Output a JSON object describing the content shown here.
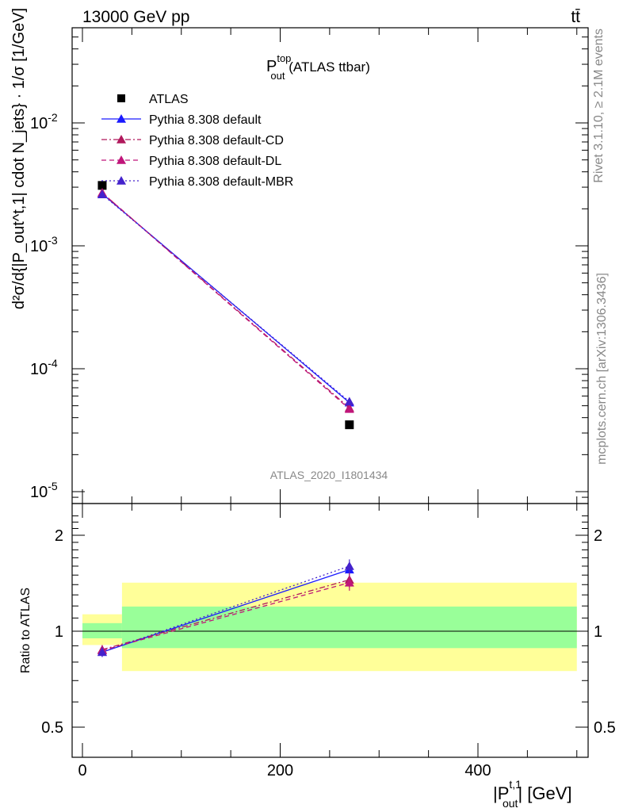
{
  "header": {
    "energy_label": "13000 GeV pp",
    "process_label": "tt̄"
  },
  "side_labels": {
    "rivet": "Rivet 3.1.10, ≥ 2.1M events",
    "mcplots": "mcplots.cern.ch [arXiv:1306.3436]"
  },
  "analysis_label": "ATLAS_2020_I1801434",
  "chart_data": [
    {
      "type": "line",
      "panel": "main",
      "title": {
        "main": "P",
        "sup": "top",
        "sub": "out",
        "suffix": " (ATLAS ttbar)"
      },
      "ylabel": "d²σ/d{|P_out^t,1| cdot N_jets} · 1/σ [1/GeV]",
      "yscale": "log",
      "ylim": [
        8e-06,
        0.0075
      ],
      "ytick_labels": [
        "10^-5",
        "10^-4",
        "10^-3",
        "10^-2"
      ],
      "xlim": [
        -10,
        510
      ],
      "legend_position": "top-left",
      "x": [
        20,
        270
      ],
      "x_bins": [
        [
          0,
          40
        ],
        [
          40,
          500
        ]
      ],
      "series": [
        {
          "name": "ATLAS",
          "color": "#000000",
          "marker": "square",
          "style": "none",
          "values": [
            0.0031,
            3.5e-05
          ],
          "errors": [
            0.0,
            0.0
          ]
        },
        {
          "name": "Pythia 8.308 default",
          "color": "#1a1aff",
          "marker": "triangle",
          "style": "solid",
          "values": [
            0.00265,
            5.3e-05
          ],
          "errors": [
            5e-05,
            3e-06
          ]
        },
        {
          "name": "Pythia 8.308 default-CD",
          "color": "#b0185c",
          "marker": "triangle",
          "style": "dashdot",
          "values": [
            0.0027,
            4.8e-05
          ],
          "errors": [
            5e-05,
            3e-06
          ]
        },
        {
          "name": "Pythia 8.308 default-DL",
          "color": "#c0157a",
          "marker": "triangle",
          "style": "dashed",
          "values": [
            0.0027,
            4.7e-05
          ],
          "errors": [
            5e-05,
            3e-06
          ]
        },
        {
          "name": "Pythia 8.308 default-MBR",
          "color": "#4422cc",
          "marker": "triangle",
          "style": "dotted",
          "values": [
            0.00262,
            5.4e-05
          ],
          "errors": [
            5e-05,
            3e-06
          ]
        }
      ]
    },
    {
      "type": "line",
      "panel": "ratio",
      "ylabel": "Ratio to ATLAS",
      "yscale": "log",
      "ylim": [
        0.43,
        2.35
      ],
      "ytick_labels": [
        "0.5",
        "1",
        "2"
      ],
      "xlabel": {
        "main": "|P",
        "sup": "t,1",
        "sub": "out",
        "suffix": "| [GeV]"
      },
      "xtick_labels": [
        "0",
        "200",
        "400"
      ],
      "xlim": [
        -10,
        510
      ],
      "x": [
        20,
        270
      ],
      "bands": [
        {
          "name": "stat",
          "color": "#99ff99",
          "bins": [
            [
              0,
              40,
              0.95,
              1.06
            ],
            [
              40,
              500,
              0.885,
              1.195
            ]
          ]
        },
        {
          "name": "total",
          "color": "#ffff99",
          "bins": [
            [
              0,
              40,
              0.905,
              1.13
            ],
            [
              40,
              500,
              0.75,
              1.42
            ]
          ]
        }
      ],
      "series": [
        {
          "name": "Pythia 8.308 default",
          "color": "#1a1aff",
          "style": "solid",
          "values": [
            0.86,
            1.56
          ],
          "errors": [
            0.03,
            0.08
          ]
        },
        {
          "name": "Pythia 8.308 default-CD",
          "color": "#b0185c",
          "style": "dashdot",
          "values": [
            0.875,
            1.45
          ],
          "errors": [
            0.03,
            0.08
          ]
        },
        {
          "name": "Pythia 8.308 default-DL",
          "color": "#c0157a",
          "style": "dashed",
          "values": [
            0.87,
            1.42
          ],
          "errors": [
            0.03,
            0.08
          ]
        },
        {
          "name": "Pythia 8.308 default-MBR",
          "color": "#4422cc",
          "style": "dotted",
          "values": [
            0.86,
            1.6
          ],
          "errors": [
            0.03,
            0.08
          ]
        }
      ]
    }
  ]
}
